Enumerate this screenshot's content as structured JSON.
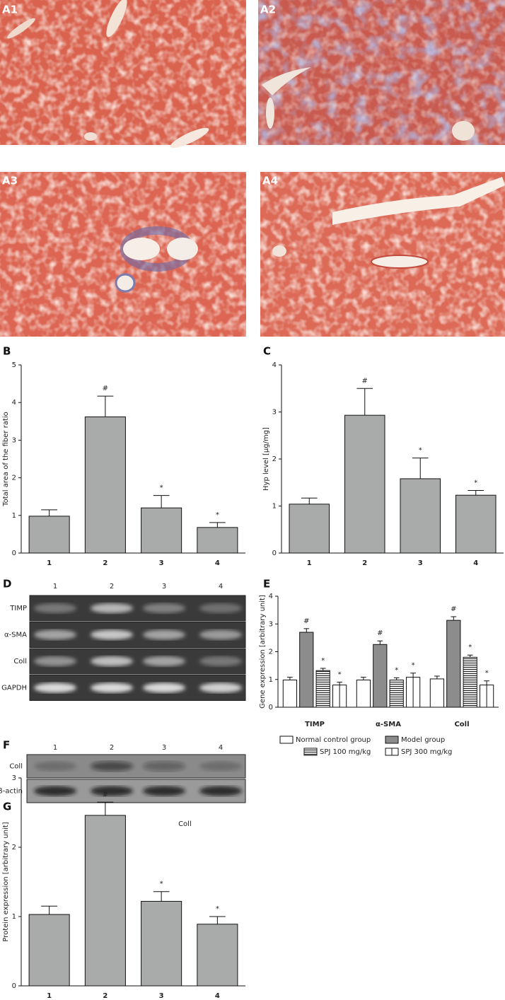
{
  "panels": {
    "A1": "A1",
    "A2": "A2",
    "A3": "A3",
    "A4": "A4",
    "B": "B",
    "C": "C",
    "D": "D",
    "E": "E",
    "F": "F",
    "G": "G"
  },
  "gels": {
    "D": {
      "lanes": [
        "1",
        "2",
        "3",
        "4"
      ],
      "rows": [
        "TIMP",
        "α-SMA",
        "Coll",
        "GAPDH"
      ]
    },
    "F": {
      "lanes": [
        "1",
        "2",
        "3",
        "4"
      ],
      "rows": [
        "Coll",
        "β-actin"
      ]
    }
  },
  "chart_data": [
    {
      "type": "bar",
      "ylabel": "Total area of the fiber ratio",
      "categories": [
        "1",
        "2",
        "3",
        "4"
      ],
      "values": [
        0.98,
        3.62,
        1.2,
        0.68
      ],
      "errors": [
        0.17,
        0.55,
        0.33,
        0.13
      ],
      "annotations": [
        null,
        "#",
        "*",
        "*"
      ],
      "color": "#a9abab",
      "ylim": [
        0,
        5
      ],
      "yticks": [
        0,
        1,
        2,
        3,
        4,
        5
      ]
    },
    {
      "type": "bar",
      "ylabel": "Hyp level [µg/mg]",
      "categories": [
        "1",
        "2",
        "3",
        "4"
      ],
      "values": [
        1.04,
        2.93,
        1.58,
        1.23
      ],
      "errors": [
        0.13,
        0.57,
        0.44,
        0.1
      ],
      "annotations": [
        null,
        "#",
        "*",
        "*"
      ],
      "color": "#a9abab",
      "ylim": [
        0,
        4
      ],
      "yticks": [
        0,
        1,
        2,
        3,
        4
      ]
    },
    {
      "type": "grouped-bar",
      "ylabel": "Gene expression [arbitrary unit]",
      "categories": [
        "TIMP",
        "α-SMA",
        "Coll"
      ],
      "series": [
        {
          "name": "Normal control group",
          "color": "#ffffff",
          "pattern": "none",
          "values": [
            0.98,
            0.98,
            1.02
          ],
          "errors": [
            0.1,
            0.1,
            0.1
          ],
          "annotations": [
            null,
            null,
            null
          ]
        },
        {
          "name": "Model group",
          "color": "#8c8c8c",
          "pattern": "none",
          "values": [
            2.7,
            2.26,
            3.13
          ],
          "errors": [
            0.13,
            0.13,
            0.13
          ],
          "annotations": [
            "#",
            "#",
            "#"
          ]
        },
        {
          "name": "SPJ 100 mg/kg",
          "color": "#ffffff",
          "pattern": "hstripe",
          "values": [
            1.32,
            0.98,
            1.8
          ],
          "errors": [
            0.08,
            0.08,
            0.08
          ],
          "annotations": [
            "*",
            "*",
            "*"
          ]
        },
        {
          "name": "SPJ 300 mg/kg",
          "color": "#ffffff",
          "pattern": "vline",
          "values": [
            0.8,
            1.08,
            0.8
          ],
          "errors": [
            0.1,
            0.15,
            0.15
          ],
          "annotations": [
            "*",
            "*",
            "*"
          ]
        }
      ],
      "ylim": [
        0,
        4
      ],
      "yticks": [
        0,
        1,
        2,
        3,
        4
      ]
    },
    {
      "type": "bar",
      "title": "Coll",
      "ylabel": "Protein expression [arbitrary unit]",
      "categories": [
        "1",
        "2",
        "3",
        "4"
      ],
      "values": [
        1.03,
        2.46,
        1.22,
        0.89
      ],
      "errors": [
        0.12,
        0.19,
        0.14,
        0.11
      ],
      "annotations": [
        null,
        "#",
        "*",
        "*"
      ],
      "color": "#a9abab",
      "ylim": [
        0,
        3
      ],
      "yticks": [
        0,
        1,
        2,
        3
      ]
    }
  ]
}
